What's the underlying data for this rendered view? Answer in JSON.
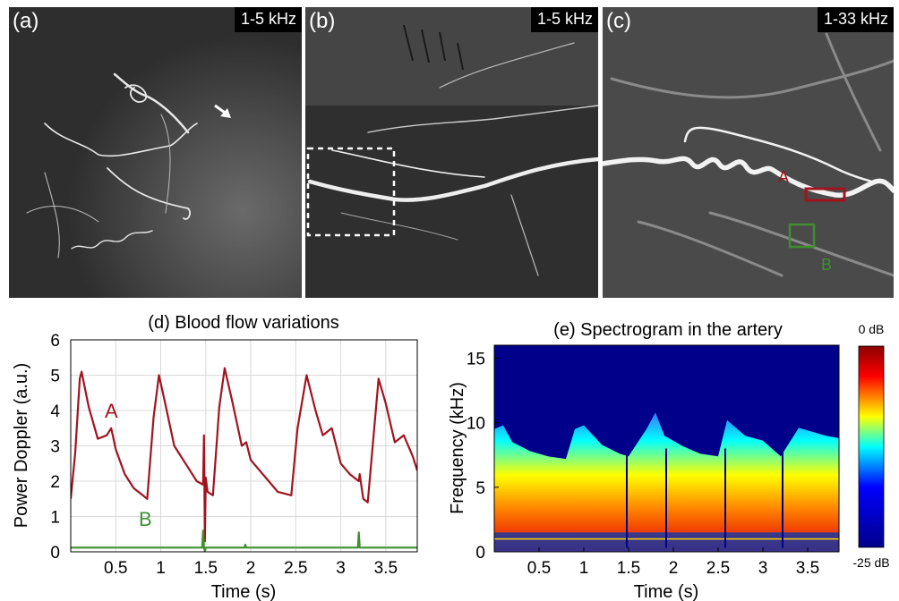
{
  "panels": [
    {
      "label": "(a)",
      "freq": "1-5 kHz"
    },
    {
      "label": "(b)",
      "freq": "1-5 kHz"
    },
    {
      "label": "(c)",
      "freq": "1-33 kHz"
    }
  ],
  "roi": {
    "a_label": "A",
    "b_label": "B",
    "a_color": "#a01420",
    "b_color": "#3f8f2f"
  },
  "chart_data": [
    {
      "type": "line",
      "title": "(d) Blood flow variations",
      "xlabel": "Time (s)",
      "ylabel": "Power Doppler (a.u.)",
      "xlim": [
        0,
        3.85
      ],
      "ylim": [
        0,
        6
      ],
      "xticks": [
        "0.5",
        "1",
        "1.5",
        "2",
        "2.5",
        "3",
        "3.5"
      ],
      "yticks": [
        "0",
        "1",
        "2",
        "3",
        "4",
        "5",
        "6"
      ],
      "grid": true,
      "series": [
        {
          "name": "A",
          "color": "#a01420",
          "x": [
            0,
            0.05,
            0.1,
            0.12,
            0.2,
            0.3,
            0.4,
            0.45,
            0.5,
            0.6,
            0.7,
            0.8,
            0.85,
            0.92,
            0.98,
            1.05,
            1.15,
            1.2,
            1.3,
            1.4,
            1.47,
            1.48,
            1.49,
            1.5,
            1.52,
            1.58,
            1.65,
            1.71,
            1.8,
            1.9,
            1.95,
            2.0,
            2.2,
            2.3,
            2.45,
            2.52,
            2.62,
            2.72,
            2.8,
            2.9,
            3.0,
            3.1,
            3.2,
            3.21,
            3.25,
            3.3,
            3.42,
            3.5,
            3.6,
            3.7,
            3.8,
            3.85
          ],
          "y": [
            1.5,
            2.8,
            4.9,
            5.1,
            4.1,
            3.2,
            3.3,
            3.5,
            2.9,
            2.2,
            1.8,
            1.6,
            1.5,
            3.8,
            5.0,
            4.2,
            3.0,
            2.8,
            2.4,
            2.0,
            1.9,
            3.3,
            0.3,
            2.1,
            1.7,
            1.6,
            4.1,
            5.2,
            4.2,
            3.0,
            3.1,
            2.6,
            2.0,
            1.7,
            1.6,
            3.5,
            5.0,
            4.0,
            3.3,
            3.5,
            2.5,
            2.2,
            2.0,
            2.2,
            1.5,
            1.4,
            4.9,
            4.2,
            3.1,
            3.3,
            2.7,
            2.3
          ]
        },
        {
          "name": "B",
          "color": "#3f8f2f",
          "x": [
            0,
            1.46,
            1.47,
            1.48,
            1.49,
            1.5,
            1.93,
            1.94,
            1.95,
            3.19,
            3.2,
            3.21,
            3.85
          ],
          "y": [
            0.12,
            0.12,
            0.6,
            0.12,
            0.02,
            0.12,
            0.12,
            0.2,
            0.12,
            0.12,
            0.55,
            0.12,
            0.12
          ]
        }
      ]
    },
    {
      "type": "heatmap",
      "title": "(e) Spectrogram in the artery",
      "xlabel": "Time (s)",
      "ylabel": "Frequency (kHz)",
      "xlim": [
        0,
        3.85
      ],
      "ylim": [
        0,
        16
      ],
      "xticks": [
        "0.5",
        "1",
        "1.5",
        "2",
        "2.5",
        "3",
        "3.5"
      ],
      "yticks": [
        "0",
        "5",
        "10",
        "15"
      ],
      "colorbar": {
        "min_label": "-25 dB",
        "max_label": "0 dB",
        "range_db": [
          -25,
          0
        ]
      },
      "envelope": {
        "time": [
          0,
          0.1,
          0.2,
          0.4,
          0.6,
          0.8,
          0.9,
          1.0,
          1.2,
          1.4,
          1.5,
          1.7,
          1.8,
          1.9,
          2.1,
          2.3,
          2.5,
          2.6,
          2.8,
          3.0,
          3.2,
          3.4,
          3.5,
          3.7,
          3.85
        ],
        "max_freq_khz": [
          9.5,
          9.8,
          8.5,
          7.8,
          7.4,
          7.2,
          9.5,
          9.8,
          8.3,
          7.6,
          7.4,
          9.5,
          10.8,
          9.0,
          8.2,
          7.6,
          7.4,
          10.2,
          9.0,
          8.6,
          7.4,
          9.6,
          9.4,
          9.0,
          8.8
        ]
      }
    }
  ]
}
